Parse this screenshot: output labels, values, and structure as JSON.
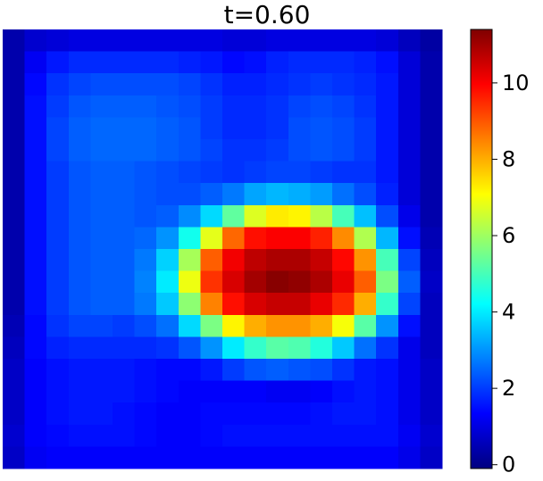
{
  "chart_data": {
    "type": "heatmap",
    "title": "t=0.60",
    "colormap": "jet",
    "zlim": [
      -0.1,
      11.4
    ],
    "zticks": [
      0,
      2,
      4,
      6,
      8,
      10
    ],
    "z": [
      [
        0.4,
        0.8,
        0.9,
        1.0,
        1.0,
        1.0,
        1.0,
        1.0,
        1.0,
        1.0,
        0.9,
        0.9,
        1.0,
        1.0,
        1.0,
        1.0,
        1.0,
        0.9,
        0.6,
        0.3
      ],
      [
        0.4,
        1.2,
        1.6,
        1.8,
        1.8,
        1.8,
        1.8,
        1.8,
        1.7,
        1.6,
        1.4,
        1.5,
        1.7,
        1.8,
        1.8,
        1.8,
        1.7,
        1.5,
        0.9,
        0.4
      ],
      [
        0.4,
        1.4,
        1.9,
        2.1,
        2.2,
        2.2,
        2.2,
        2.2,
        2.1,
        1.9,
        1.7,
        1.7,
        1.8,
        1.9,
        2.0,
        1.9,
        1.8,
        1.6,
        0.9,
        0.4
      ],
      [
        0.4,
        1.5,
        2.0,
        2.3,
        2.4,
        2.4,
        2.4,
        2.3,
        2.2,
        2.0,
        1.8,
        1.8,
        1.9,
        2.1,
        2.2,
        2.1,
        1.9,
        1.6,
        0.9,
        0.4
      ],
      [
        0.4,
        1.5,
        2.1,
        2.4,
        2.5,
        2.5,
        2.5,
        2.4,
        2.3,
        2.0,
        1.8,
        1.8,
        1.9,
        2.2,
        2.3,
        2.2,
        2.0,
        1.6,
        0.9,
        0.4
      ],
      [
        0.4,
        1.5,
        2.1,
        2.4,
        2.5,
        2.5,
        2.5,
        2.4,
        2.3,
        2.1,
        1.9,
        1.9,
        2.0,
        2.2,
        2.3,
        2.2,
        2.0,
        1.6,
        0.9,
        0.4
      ],
      [
        0.4,
        1.5,
        2.0,
        2.3,
        2.4,
        2.4,
        2.3,
        2.2,
        2.1,
        2.0,
        1.9,
        2.0,
        2.1,
        2.1,
        2.0,
        1.9,
        1.9,
        1.6,
        0.9,
        0.4
      ],
      [
        0.4,
        1.5,
        2.0,
        2.3,
        2.4,
        2.4,
        2.3,
        2.2,
        2.2,
        2.4,
        2.7,
        3.2,
        3.4,
        3.3,
        3.1,
        2.6,
        2.2,
        1.7,
        0.9,
        0.4
      ],
      [
        0.4,
        1.5,
        2.0,
        2.3,
        2.4,
        2.4,
        2.3,
        2.4,
        2.9,
        3.8,
        5.3,
        6.7,
        7.3,
        7.2,
        6.3,
        5.0,
        3.5,
        2.2,
        1.1,
        0.4
      ],
      [
        0.4,
        1.5,
        2.0,
        2.3,
        2.4,
        2.4,
        2.5,
        3.0,
        4.4,
        6.8,
        8.8,
        9.8,
        10.0,
        10.0,
        9.6,
        8.4,
        6.2,
        3.4,
        1.5,
        0.5
      ],
      [
        0.4,
        1.5,
        2.0,
        2.3,
        2.4,
        2.4,
        2.7,
        3.7,
        6.1,
        8.9,
        10.1,
        10.7,
        10.9,
        10.9,
        10.6,
        9.9,
        8.3,
        5.0,
        2.1,
        0.6
      ],
      [
        0.4,
        1.5,
        2.0,
        2.3,
        2.4,
        2.4,
        2.8,
        4.0,
        6.9,
        9.4,
        10.4,
        11.0,
        11.3,
        11.2,
        10.9,
        10.2,
        8.9,
        5.6,
        2.4,
        0.7
      ],
      [
        0.4,
        1.5,
        2.0,
        2.3,
        2.4,
        2.4,
        2.7,
        3.6,
        5.8,
        8.5,
        9.8,
        10.4,
        10.6,
        10.6,
        10.2,
        9.5,
        8.0,
        4.8,
        2.1,
        0.6
      ],
      [
        0.5,
        1.4,
        1.9,
        2.1,
        2.1,
        2.0,
        2.2,
        2.6,
        3.8,
        5.6,
        7.2,
        8.0,
        8.3,
        8.3,
        8.0,
        7.0,
        5.2,
        3.0,
        1.5,
        0.6
      ],
      [
        0.6,
        1.4,
        1.7,
        1.8,
        1.8,
        1.8,
        1.8,
        1.9,
        2.3,
        3.0,
        4.0,
        4.8,
        5.2,
        5.1,
        4.6,
        3.6,
        2.6,
        1.9,
        1.1,
        0.6
      ],
      [
        0.7,
        1.3,
        1.5,
        1.6,
        1.6,
        1.6,
        1.5,
        1.4,
        1.4,
        1.6,
        2.0,
        2.3,
        2.4,
        2.3,
        2.2,
        1.9,
        1.6,
        1.5,
        1.1,
        0.7
      ],
      [
        0.7,
        1.3,
        1.5,
        1.6,
        1.6,
        1.6,
        1.5,
        1.4,
        1.3,
        1.3,
        1.3,
        1.3,
        1.2,
        1.2,
        1.3,
        1.5,
        1.6,
        1.5,
        1.1,
        0.7
      ],
      [
        0.7,
        1.3,
        1.5,
        1.6,
        1.6,
        1.5,
        1.4,
        1.3,
        1.3,
        1.4,
        1.4,
        1.4,
        1.4,
        1.4,
        1.5,
        1.6,
        1.6,
        1.5,
        1.1,
        0.7
      ],
      [
        0.8,
        1.3,
        1.4,
        1.5,
        1.5,
        1.5,
        1.4,
        1.3,
        1.3,
        1.4,
        1.5,
        1.5,
        1.5,
        1.5,
        1.5,
        1.5,
        1.5,
        1.5,
        1.2,
        0.8
      ],
      [
        0.7,
        1.2,
        1.3,
        1.3,
        1.3,
        1.3,
        1.3,
        1.3,
        1.3,
        1.3,
        1.3,
        1.3,
        1.3,
        1.3,
        1.3,
        1.3,
        1.3,
        1.3,
        1.1,
        0.7
      ]
    ]
  }
}
